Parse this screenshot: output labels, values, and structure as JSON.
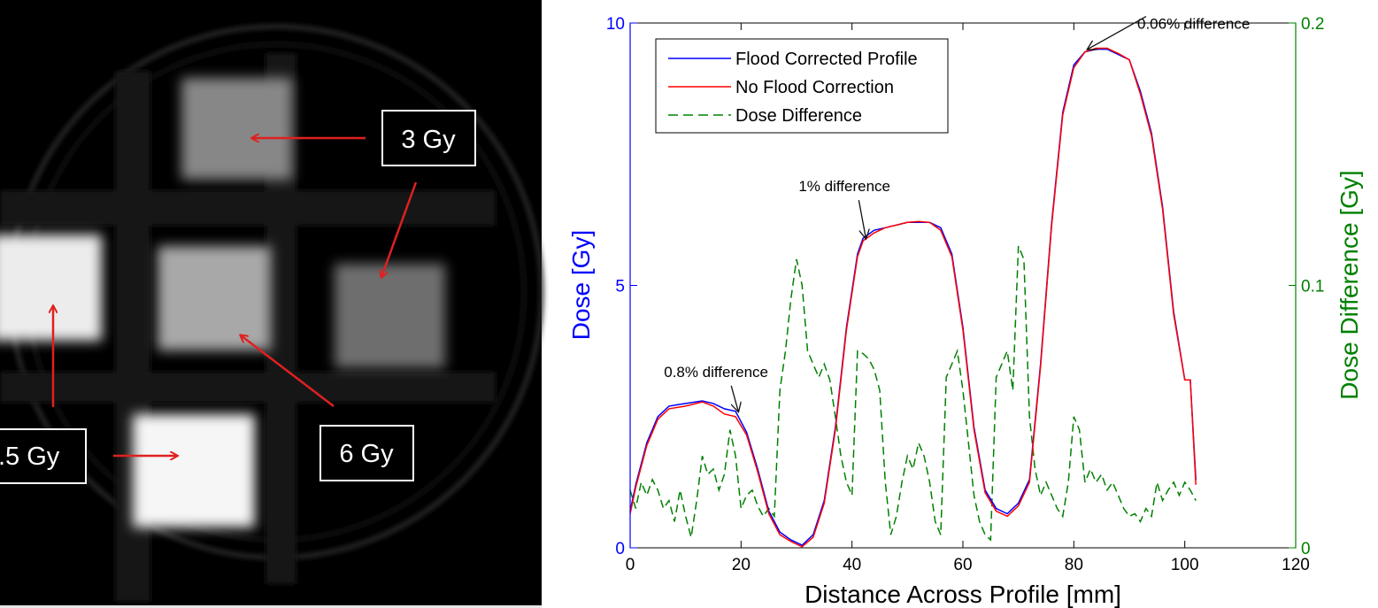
{
  "left_panel": {
    "labels": [
      {
        "id": "3gy",
        "text": "3 Gy"
      },
      {
        "id": "6gy",
        "text": "6 Gy"
      },
      {
        "id": "15gy",
        "text": ".5 Gy"
      }
    ],
    "arrow_color": "#e02020"
  },
  "chart_data": {
    "type": "line",
    "xlabel": "Distance Across Profile [mm]",
    "ylabel_left": "Dose [Gy]",
    "ylabel_right": "Dose Difference [Gy]",
    "xlim": [
      0,
      120
    ],
    "xticks": [
      0,
      20,
      40,
      60,
      80,
      100,
      120
    ],
    "ylim_left": [
      0,
      10
    ],
    "yticks_left": [
      0,
      5,
      10
    ],
    "ylim_right": [
      0,
      0.2
    ],
    "yticks_right": [
      0,
      0.1,
      0.2
    ],
    "legend_position": "top-left",
    "colors": {
      "left_axis": "#0000ff",
      "right_axis": "#008000",
      "blue": "#0000ff",
      "red": "#ff0000",
      "green": "#008000"
    },
    "series": [
      {
        "name": "Flood Corrected Profile",
        "axis": "left",
        "style": "solid",
        "color": "#0000ff",
        "x": [
          0,
          1,
          3,
          5,
          7,
          10,
          13,
          15,
          17,
          19,
          21,
          23,
          25,
          27,
          29,
          31,
          33,
          35,
          37,
          39,
          41,
          42,
          44,
          46,
          48,
          50,
          52,
          54,
          56,
          58,
          60,
          62,
          64,
          66,
          68,
          70,
          72,
          74,
          76,
          78,
          80,
          82,
          84,
          86,
          88,
          90,
          92,
          94,
          96,
          98,
          100,
          101,
          102
        ],
        "y": [
          0.7,
          1.2,
          2.0,
          2.5,
          2.7,
          2.75,
          2.8,
          2.75,
          2.65,
          2.6,
          2.2,
          1.5,
          0.7,
          0.3,
          0.15,
          0.05,
          0.25,
          0.9,
          2.3,
          4.2,
          5.6,
          5.9,
          6.05,
          6.1,
          6.15,
          6.2,
          6.2,
          6.2,
          6.1,
          5.6,
          4.2,
          2.3,
          1.1,
          0.75,
          0.65,
          0.85,
          1.3,
          3.5,
          6.2,
          8.3,
          9.2,
          9.45,
          9.5,
          9.5,
          9.4,
          9.3,
          8.7,
          7.9,
          6.5,
          4.5,
          3.2,
          3.2,
          1.3
        ]
      },
      {
        "name": "No Flood Correction",
        "axis": "left",
        "style": "solid",
        "color": "#ff0000",
        "x": [
          0,
          1,
          3,
          5,
          7,
          10,
          13,
          15,
          17,
          19,
          21,
          23,
          25,
          27,
          29,
          31,
          33,
          35,
          37,
          39,
          41,
          42,
          44,
          46,
          48,
          50,
          52,
          54,
          56,
          58,
          60,
          62,
          64,
          66,
          68,
          70,
          72,
          74,
          76,
          78,
          80,
          82,
          84,
          86,
          88,
          90,
          92,
          94,
          96,
          98,
          100,
          101,
          102
        ],
        "y": [
          0.65,
          1.15,
          1.95,
          2.45,
          2.65,
          2.7,
          2.78,
          2.7,
          2.55,
          2.5,
          2.15,
          1.45,
          0.65,
          0.25,
          0.12,
          0.02,
          0.2,
          0.85,
          2.25,
          4.15,
          5.55,
          5.85,
          6.0,
          6.1,
          6.15,
          6.2,
          6.22,
          6.2,
          6.05,
          5.55,
          4.15,
          2.25,
          1.05,
          0.7,
          0.6,
          0.8,
          1.25,
          3.45,
          6.15,
          8.25,
          9.15,
          9.45,
          9.52,
          9.52,
          9.42,
          9.3,
          8.65,
          7.85,
          6.45,
          4.45,
          3.2,
          3.2,
          1.2
        ]
      },
      {
        "name": "Dose Difference",
        "axis": "right",
        "style": "dashed",
        "color": "#008000",
        "x": [
          0,
          1,
          2,
          3,
          4,
          5,
          6,
          7,
          8,
          9,
          10,
          11,
          12,
          13,
          14,
          15,
          16,
          17,
          18,
          19,
          20,
          21,
          22,
          23,
          24,
          25,
          26,
          27,
          28,
          29,
          30,
          31,
          32,
          33,
          34,
          35,
          36,
          37,
          38,
          39,
          40,
          41,
          42,
          43,
          44,
          45,
          46,
          47,
          48,
          49,
          50,
          51,
          52,
          53,
          54,
          55,
          56,
          57,
          58,
          59,
          60,
          61,
          62,
          63,
          64,
          65,
          66,
          67,
          68,
          69,
          70,
          71,
          72,
          73,
          74,
          75,
          76,
          77,
          78,
          79,
          80,
          81,
          82,
          83,
          84,
          85,
          86,
          87,
          88,
          89,
          90,
          91,
          92,
          93,
          94,
          95,
          96,
          97,
          98,
          99,
          100,
          101,
          102
        ],
        "y": [
          0.022,
          0.015,
          0.025,
          0.02,
          0.026,
          0.022,
          0.015,
          0.018,
          0.01,
          0.022,
          0.012,
          0.004,
          0.018,
          0.035,
          0.028,
          0.03,
          0.022,
          0.028,
          0.045,
          0.035,
          0.015,
          0.02,
          0.022,
          0.016,
          0.012,
          0.015,
          0.012,
          0.06,
          0.075,
          0.095,
          0.11,
          0.1,
          0.075,
          0.07,
          0.065,
          0.07,
          0.064,
          0.05,
          0.035,
          0.025,
          0.02,
          0.075,
          0.074,
          0.072,
          0.068,
          0.06,
          0.025,
          0.005,
          0.012,
          0.025,
          0.035,
          0.03,
          0.04,
          0.035,
          0.025,
          0.01,
          0.005,
          0.065,
          0.07,
          0.075,
          0.06,
          0.04,
          0.02,
          0.01,
          0.005,
          0.003,
          0.065,
          0.07,
          0.075,
          0.06,
          0.115,
          0.11,
          0.05,
          0.03,
          0.02,
          0.025,
          0.02,
          0.015,
          0.012,
          0.025,
          0.05,
          0.045,
          0.025,
          0.03,
          0.025,
          0.028,
          0.022,
          0.025,
          0.02,
          0.015,
          0.012,
          0.013,
          0.01,
          0.015,
          0.012,
          0.025,
          0.018,
          0.022,
          0.025,
          0.02,
          0.025,
          0.022,
          0.018
        ]
      }
    ],
    "annotations": [
      {
        "text": "0.8% difference",
        "x": 19.5,
        "y": 2.55
      },
      {
        "text": "1% difference",
        "x": 42.5,
        "y": 5.85
      },
      {
        "text": "0.06% difference",
        "x": 82.5,
        "y": 9.45
      }
    ]
  }
}
